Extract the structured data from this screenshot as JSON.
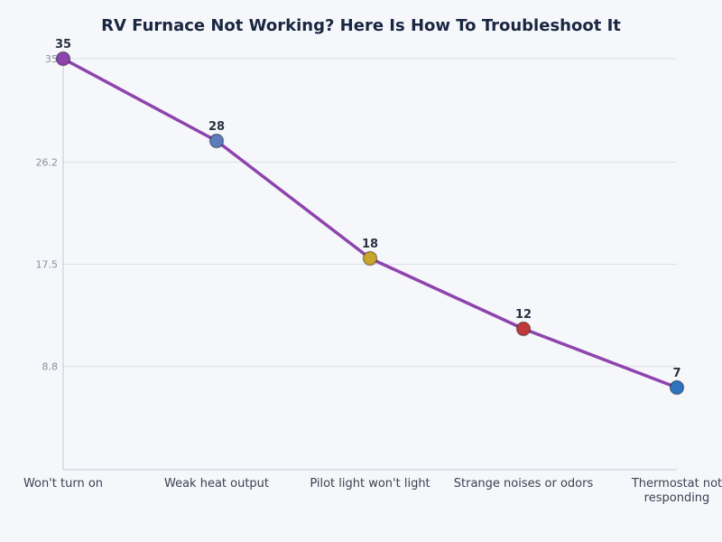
{
  "chart_data": {
    "type": "line",
    "title": "RV Furnace Not Working? Here Is How To Troubleshoot It",
    "xlabel": "",
    "ylabel": "",
    "categories": [
      [
        "Won't turn on"
      ],
      [
        "Weak heat output"
      ],
      [
        "Pilot light won't light"
      ],
      [
        "Strange noises or odors"
      ],
      [
        "Thermostat not",
        "responding"
      ]
    ],
    "values": [
      35,
      28,
      18,
      12,
      7
    ],
    "data_labels": [
      "35",
      "28",
      "18",
      "12",
      "7"
    ],
    "point_colors": [
      "#8e44ad",
      "#5b7dbd",
      "#c9a62a",
      "#c0393b",
      "#2e74bf"
    ],
    "line_color": "#8e44ad",
    "yticks": [
      8.8,
      17.5,
      26.2,
      35
    ],
    "ytick_labels": [
      "8.8",
      "17.5",
      "26.2",
      "35"
    ],
    "ylim": [
      0,
      35
    ],
    "grid": true,
    "legend": "none"
  }
}
